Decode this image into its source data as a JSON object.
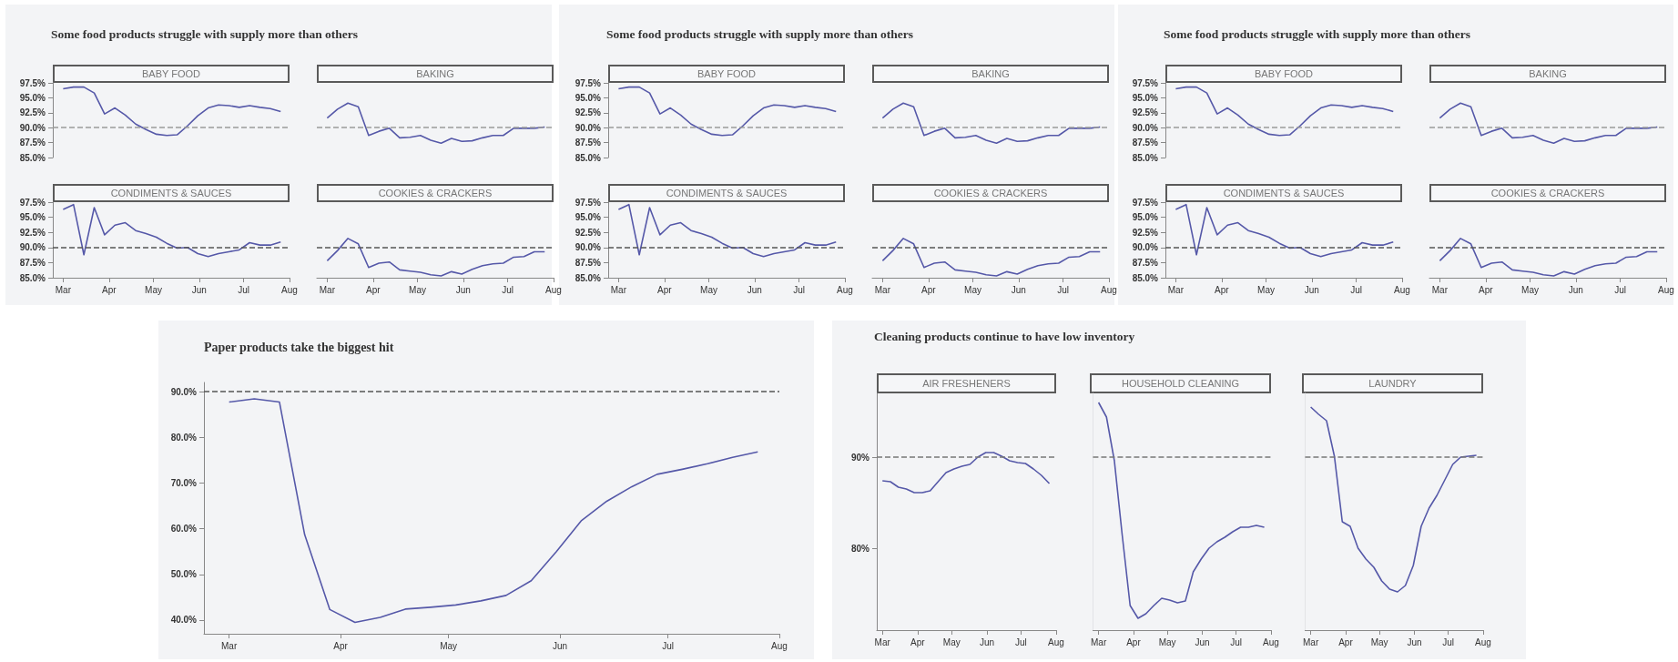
{
  "chart_data": [
    {
      "type": "other",
      "title": "Some food products struggle with supply more than others"
    },
    {
      "type": "line",
      "title": "BABY FOOD",
      "tick_labels": "y",
      "x": [
        "--03-01",
        "--03-08",
        "--03-15",
        "--03-22",
        "--03-29",
        "--04-05",
        "--04-12",
        "--04-19",
        "--04-26",
        "--05-03",
        "--05-10",
        "--05-17",
        "--05-24",
        "--05-31",
        "--06-07",
        "--06-14",
        "--06-21",
        "--06-28",
        "--07-05",
        "--07-12",
        "--07-19",
        "--07-26"
      ],
      "xlim": [
        "--02-23",
        "--08-01"
      ],
      "xticks": [
        {
          "value": "--03-01",
          "label": "Mar"
        },
        {
          "value": "--04-01",
          "label": "Apr"
        },
        {
          "value": "--05-01",
          "label": "May"
        },
        {
          "value": "--06-01",
          "label": "Jun"
        },
        {
          "value": "--07-01",
          "label": "Jul"
        },
        {
          "value": "--08-01",
          "label": "Aug"
        }
      ],
      "ylim": [
        85,
        97.5
      ],
      "yticks": [
        {
          "value": 85,
          "label": "85.0%"
        },
        {
          "value": 87.5,
          "label": "87.5%"
        },
        {
          "value": 90,
          "label": "90.0%"
        },
        {
          "value": 92.5,
          "label": "92.5%"
        },
        {
          "value": 95,
          "label": "95.0%"
        },
        {
          "value": 97.5,
          "label": "97.5%"
        }
      ],
      "ref_lines": [
        {
          "axis": "y",
          "value": 90,
          "color": "#9a9a9a",
          "line_style": "dashed"
        }
      ],
      "color": "#5558a8",
      "values": [
        96.5,
        96.8,
        96.8,
        95.8,
        92.3,
        93.3,
        92.1,
        90.6,
        89.7,
        88.9,
        88.7,
        88.8,
        90.3,
        92.0,
        93.3,
        93.8,
        93.7,
        93.4,
        93.7,
        93.4,
        93.2,
        92.7
      ]
    },
    {
      "type": "line",
      "title": "BAKING",
      "tick_labels": false,
      "x": [
        "--03-01",
        "--03-08",
        "--03-15",
        "--03-22",
        "--03-29",
        "--04-05",
        "--04-12",
        "--04-19",
        "--04-26",
        "--05-03",
        "--05-10",
        "--05-17",
        "--05-24",
        "--05-31",
        "--06-07",
        "--06-14",
        "--06-21",
        "--06-28",
        "--07-05",
        "--07-12",
        "--07-19",
        "--07-26"
      ],
      "xlim": [
        "--02-23",
        "--08-01"
      ],
      "xticks": [
        {
          "value": "--03-01",
          "label": "Mar"
        },
        {
          "value": "--04-01",
          "label": "Apr"
        },
        {
          "value": "--05-01",
          "label": "May"
        },
        {
          "value": "--06-01",
          "label": "Jun"
        },
        {
          "value": "--07-01",
          "label": "Jul"
        },
        {
          "value": "--08-01",
          "label": "Aug"
        }
      ],
      "ylim": [
        85,
        97.5
      ],
      "yticks": [
        {
          "value": 85,
          "label": "85.0%"
        },
        {
          "value": 87.5,
          "label": "87.5%"
        },
        {
          "value": 90,
          "label": "90.0%"
        },
        {
          "value": 92.5,
          "label": "92.5%"
        },
        {
          "value": 95,
          "label": "95.0%"
        },
        {
          "value": 97.5,
          "label": "97.5%"
        }
      ],
      "ref_lines": [
        {
          "axis": "y",
          "value": 90,
          "color": "#9a9a9a",
          "line_style": "dashed"
        }
      ],
      "color": "#5558a8",
      "values": [
        91.6,
        93.1,
        94.1,
        93.5,
        88.7,
        89.4,
        89.9,
        88.3,
        88.4,
        88.7,
        87.9,
        87.4,
        88.2,
        87.7,
        87.8,
        88.3,
        88.7,
        88.7,
        89.9,
        89.9,
        89.9,
        90.1
      ]
    },
    {
      "type": "line",
      "title": "CONDIMENTS & SAUCES",
      "x": [
        "--03-01",
        "--03-08",
        "--03-15",
        "--03-22",
        "--03-29",
        "--04-05",
        "--04-12",
        "--04-19",
        "--04-26",
        "--05-03",
        "--05-10",
        "--05-17",
        "--05-24",
        "--05-31",
        "--06-07",
        "--06-14",
        "--06-21",
        "--06-28",
        "--07-05",
        "--07-12",
        "--07-19",
        "--07-26"
      ],
      "xlim": [
        "--02-23",
        "--08-01"
      ],
      "xticks": [
        {
          "value": "--03-01",
          "label": "Mar"
        },
        {
          "value": "--04-01",
          "label": "Apr"
        },
        {
          "value": "--05-01",
          "label": "May"
        },
        {
          "value": "--06-01",
          "label": "Jun"
        },
        {
          "value": "--07-01",
          "label": "Jul"
        },
        {
          "value": "--08-01",
          "label": "Aug"
        }
      ],
      "ylim": [
        85,
        97.5
      ],
      "yticks": [
        {
          "value": 85,
          "label": "85.0%"
        },
        {
          "value": 87.5,
          "label": "87.5%"
        },
        {
          "value": 90,
          "label": "90.0%"
        },
        {
          "value": 92.5,
          "label": "92.5%"
        },
        {
          "value": 95,
          "label": "95.0%"
        },
        {
          "value": 97.5,
          "label": "97.5%"
        }
      ],
      "ref_lines": [
        {
          "axis": "y",
          "value": 90,
          "color": "#555555",
          "line_style": "dashed"
        }
      ],
      "color": "#5558a8",
      "values": [
        96.3,
        97.1,
        88.8,
        96.6,
        92.1,
        93.7,
        94.1,
        92.8,
        92.3,
        91.7,
        90.7,
        89.9,
        90.0,
        89.0,
        88.5,
        89.0,
        89.3,
        89.6,
        90.8,
        90.4,
        90.4,
        90.9
      ]
    },
    {
      "type": "line",
      "title": "COOKIES & CRACKERS",
      "tick_labels": "x",
      "x": [
        "--03-01",
        "--03-08",
        "--03-15",
        "--03-22",
        "--03-29",
        "--04-05",
        "--04-12",
        "--04-19",
        "--04-26",
        "--05-03",
        "--05-10",
        "--05-17",
        "--05-24",
        "--05-31",
        "--06-07",
        "--06-14",
        "--06-21",
        "--06-28",
        "--07-05",
        "--07-12",
        "--07-19",
        "--07-26"
      ],
      "xlim": [
        "--02-23",
        "--08-01"
      ],
      "xticks": [
        {
          "value": "--03-01",
          "label": "Mar"
        },
        {
          "value": "--04-01",
          "label": "Apr"
        },
        {
          "value": "--05-01",
          "label": "May"
        },
        {
          "value": "--06-01",
          "label": "Jun"
        },
        {
          "value": "--07-01",
          "label": "Jul"
        },
        {
          "value": "--08-01",
          "label": "Aug"
        }
      ],
      "ylim": [
        85,
        97.5
      ],
      "yticks": [
        {
          "value": 85,
          "label": "85.0%"
        },
        {
          "value": 87.5,
          "label": "87.5%"
        },
        {
          "value": 90,
          "label": "90.0%"
        },
        {
          "value": 92.5,
          "label": "92.5%"
        },
        {
          "value": 95,
          "label": "95.0%"
        },
        {
          "value": 97.5,
          "label": "97.5%"
        }
      ],
      "ref_lines": [
        {
          "axis": "y",
          "value": 90,
          "color": "#555555",
          "line_style": "dashed"
        }
      ],
      "color": "#5558a8",
      "values": [
        87.8,
        89.5,
        91.5,
        90.6,
        86.7,
        87.4,
        87.6,
        86.3,
        86.1,
        85.9,
        85.5,
        85.3,
        86.0,
        85.6,
        86.4,
        87.0,
        87.3,
        87.4,
        88.4,
        88.5,
        89.3,
        89.3
      ]
    },
    {
      "type": "other",
      "title": "Some food products struggle with supply more than others"
    },
    {
      "type": "line",
      "title": "BABY FOOD",
      "tick_labels": "y",
      "x": [
        "--03-01",
        "--03-08",
        "--03-15",
        "--03-22",
        "--03-29",
        "--04-05",
        "--04-12",
        "--04-19",
        "--04-26",
        "--05-03",
        "--05-10",
        "--05-17",
        "--05-24",
        "--05-31",
        "--06-07",
        "--06-14",
        "--06-21",
        "--06-28",
        "--07-05",
        "--07-12",
        "--07-19",
        "--07-26"
      ],
      "xlim": [
        "--02-23",
        "--08-01"
      ],
      "xticks": [
        {
          "value": "--03-01",
          "label": "Mar"
        },
        {
          "value": "--04-01",
          "label": "Apr"
        },
        {
          "value": "--05-01",
          "label": "May"
        },
        {
          "value": "--06-01",
          "label": "Jun"
        },
        {
          "value": "--07-01",
          "label": "Jul"
        },
        {
          "value": "--08-01",
          "label": "Aug"
        }
      ],
      "ylim": [
        85,
        97.5
      ],
      "yticks": [
        {
          "value": 85,
          "label": "85.0%"
        },
        {
          "value": 87.5,
          "label": "87.5%"
        },
        {
          "value": 90,
          "label": "90.0%"
        },
        {
          "value": 92.5,
          "label": "92.5%"
        },
        {
          "value": 95,
          "label": "95.0%"
        },
        {
          "value": 97.5,
          "label": "97.5%"
        }
      ],
      "ref_lines": [
        {
          "axis": "y",
          "value": 90,
          "color": "#9a9a9a",
          "line_style": "dashed"
        }
      ],
      "color": "#5558a8",
      "values": [
        96.5,
        96.8,
        96.8,
        95.8,
        92.3,
        93.3,
        92.1,
        90.6,
        89.7,
        88.9,
        88.7,
        88.8,
        90.3,
        92.0,
        93.3,
        93.8,
        93.7,
        93.4,
        93.7,
        93.4,
        93.2,
        92.7
      ]
    },
    {
      "type": "line",
      "title": "BAKING",
      "tick_labels": false,
      "x": [
        "--03-01",
        "--03-08",
        "--03-15",
        "--03-22",
        "--03-29",
        "--04-05",
        "--04-12",
        "--04-19",
        "--04-26",
        "--05-03",
        "--05-10",
        "--05-17",
        "--05-24",
        "--05-31",
        "--06-07",
        "--06-14",
        "--06-21",
        "--06-28",
        "--07-05",
        "--07-12",
        "--07-19",
        "--07-26"
      ],
      "xlim": [
        "--02-23",
        "--08-01"
      ],
      "xticks": [
        {
          "value": "--03-01",
          "label": "Mar"
        },
        {
          "value": "--04-01",
          "label": "Apr"
        },
        {
          "value": "--05-01",
          "label": "May"
        },
        {
          "value": "--06-01",
          "label": "Jun"
        },
        {
          "value": "--07-01",
          "label": "Jul"
        },
        {
          "value": "--08-01",
          "label": "Aug"
        }
      ],
      "ylim": [
        85,
        97.5
      ],
      "yticks": [
        {
          "value": 85,
          "label": "85.0%"
        },
        {
          "value": 87.5,
          "label": "87.5%"
        },
        {
          "value": 90,
          "label": "90.0%"
        },
        {
          "value": 92.5,
          "label": "92.5%"
        },
        {
          "value": 95,
          "label": "95.0%"
        },
        {
          "value": 97.5,
          "label": "97.5%"
        }
      ],
      "ref_lines": [
        {
          "axis": "y",
          "value": 90,
          "color": "#9a9a9a",
          "line_style": "dashed"
        }
      ],
      "color": "#5558a8",
      "values": [
        91.6,
        93.1,
        94.1,
        93.5,
        88.7,
        89.4,
        89.9,
        88.3,
        88.4,
        88.7,
        87.9,
        87.4,
        88.2,
        87.7,
        87.8,
        88.3,
        88.7,
        88.7,
        89.9,
        89.9,
        89.9,
        90.1
      ]
    },
    {
      "type": "line",
      "title": "CONDIMENTS & SAUCES",
      "x": [
        "--03-01",
        "--03-08",
        "--03-15",
        "--03-22",
        "--03-29",
        "--04-05",
        "--04-12",
        "--04-19",
        "--04-26",
        "--05-03",
        "--05-10",
        "--05-17",
        "--05-24",
        "--05-31",
        "--06-07",
        "--06-14",
        "--06-21",
        "--06-28",
        "--07-05",
        "--07-12",
        "--07-19",
        "--07-26"
      ],
      "xlim": [
        "--02-23",
        "--08-01"
      ],
      "xticks": [
        {
          "value": "--03-01",
          "label": "Mar"
        },
        {
          "value": "--04-01",
          "label": "Apr"
        },
        {
          "value": "--05-01",
          "label": "May"
        },
        {
          "value": "--06-01",
          "label": "Jun"
        },
        {
          "value": "--07-01",
          "label": "Jul"
        },
        {
          "value": "--08-01",
          "label": "Aug"
        }
      ],
      "ylim": [
        85,
        97.5
      ],
      "yticks": [
        {
          "value": 85,
          "label": "85.0%"
        },
        {
          "value": 87.5,
          "label": "87.5%"
        },
        {
          "value": 90,
          "label": "90.0%"
        },
        {
          "value": 92.5,
          "label": "92.5%"
        },
        {
          "value": 95,
          "label": "95.0%"
        },
        {
          "value": 97.5,
          "label": "97.5%"
        }
      ],
      "ref_lines": [
        {
          "axis": "y",
          "value": 90,
          "color": "#555555",
          "line_style": "dashed"
        }
      ],
      "color": "#5558a8",
      "values": [
        96.3,
        97.1,
        88.8,
        96.6,
        92.1,
        93.7,
        94.1,
        92.8,
        92.3,
        91.7,
        90.7,
        89.9,
        90.0,
        89.0,
        88.5,
        89.0,
        89.3,
        89.6,
        90.8,
        90.4,
        90.4,
        90.9
      ]
    },
    {
      "type": "line",
      "title": "COOKIES & CRACKERS",
      "tick_labels": "x",
      "x": [
        "--03-01",
        "--03-08",
        "--03-15",
        "--03-22",
        "--03-29",
        "--04-05",
        "--04-12",
        "--04-19",
        "--04-26",
        "--05-03",
        "--05-10",
        "--05-17",
        "--05-24",
        "--05-31",
        "--06-07",
        "--06-14",
        "--06-21",
        "--06-28",
        "--07-05",
        "--07-12",
        "--07-19",
        "--07-26"
      ],
      "xlim": [
        "--02-23",
        "--08-01"
      ],
      "xticks": [
        {
          "value": "--03-01",
          "label": "Mar"
        },
        {
          "value": "--04-01",
          "label": "Apr"
        },
        {
          "value": "--05-01",
          "label": "May"
        },
        {
          "value": "--06-01",
          "label": "Jun"
        },
        {
          "value": "--07-01",
          "label": "Jul"
        },
        {
          "value": "--08-01",
          "label": "Aug"
        }
      ],
      "ylim": [
        85,
        97.5
      ],
      "yticks": [
        {
          "value": 85,
          "label": "85.0%"
        },
        {
          "value": 87.5,
          "label": "87.5%"
        },
        {
          "value": 90,
          "label": "90.0%"
        },
        {
          "value": 92.5,
          "label": "92.5%"
        },
        {
          "value": 95,
          "label": "95.0%"
        },
        {
          "value": 97.5,
          "label": "97.5%"
        }
      ],
      "ref_lines": [
        {
          "axis": "y",
          "value": 90,
          "color": "#555555",
          "line_style": "dashed"
        }
      ],
      "color": "#5558a8",
      "values": [
        87.8,
        89.5,
        91.5,
        90.6,
        86.7,
        87.4,
        87.6,
        86.3,
        86.1,
        85.9,
        85.5,
        85.3,
        86.0,
        85.6,
        86.4,
        87.0,
        87.3,
        87.4,
        88.4,
        88.5,
        89.3,
        89.3
      ]
    },
    {
      "type": "other",
      "title": "Some food products struggle with supply more than others"
    },
    {
      "type": "line",
      "title": "BABY FOOD",
      "tick_labels": "y",
      "x": [
        "--03-01",
        "--03-08",
        "--03-15",
        "--03-22",
        "--03-29",
        "--04-05",
        "--04-12",
        "--04-19",
        "--04-26",
        "--05-03",
        "--05-10",
        "--05-17",
        "--05-24",
        "--05-31",
        "--06-07",
        "--06-14",
        "--06-21",
        "--06-28",
        "--07-05",
        "--07-12",
        "--07-19",
        "--07-26"
      ],
      "xlim": [
        "--02-23",
        "--08-01"
      ],
      "xticks": [
        {
          "value": "--03-01",
          "label": "Mar"
        },
        {
          "value": "--04-01",
          "label": "Apr"
        },
        {
          "value": "--05-01",
          "label": "May"
        },
        {
          "value": "--06-01",
          "label": "Jun"
        },
        {
          "value": "--07-01",
          "label": "Jul"
        },
        {
          "value": "--08-01",
          "label": "Aug"
        }
      ],
      "ylim": [
        85,
        97.5
      ],
      "yticks": [
        {
          "value": 85,
          "label": "85.0%"
        },
        {
          "value": 87.5,
          "label": "87.5%"
        },
        {
          "value": 90,
          "label": "90.0%"
        },
        {
          "value": 92.5,
          "label": "92.5%"
        },
        {
          "value": 95,
          "label": "95.0%"
        },
        {
          "value": 97.5,
          "label": "97.5%"
        }
      ],
      "ref_lines": [
        {
          "axis": "y",
          "value": 90,
          "color": "#9a9a9a",
          "line_style": "dashed"
        }
      ],
      "color": "#5558a8",
      "values": [
        96.5,
        96.8,
        96.8,
        95.8,
        92.3,
        93.3,
        92.1,
        90.6,
        89.7,
        88.9,
        88.7,
        88.8,
        90.3,
        92.0,
        93.3,
        93.8,
        93.7,
        93.4,
        93.7,
        93.4,
        93.2,
        92.7
      ]
    },
    {
      "type": "line",
      "title": "BAKING",
      "tick_labels": false,
      "x": [
        "--03-01",
        "--03-08",
        "--03-15",
        "--03-22",
        "--03-29",
        "--04-05",
        "--04-12",
        "--04-19",
        "--04-26",
        "--05-03",
        "--05-10",
        "--05-17",
        "--05-24",
        "--05-31",
        "--06-07",
        "--06-14",
        "--06-21",
        "--06-28",
        "--07-05",
        "--07-12",
        "--07-19",
        "--07-26"
      ],
      "xlim": [
        "--02-23",
        "--08-01"
      ],
      "xticks": [
        {
          "value": "--03-01",
          "label": "Mar"
        },
        {
          "value": "--04-01",
          "label": "Apr"
        },
        {
          "value": "--05-01",
          "label": "May"
        },
        {
          "value": "--06-01",
          "label": "Jun"
        },
        {
          "value": "--07-01",
          "label": "Jul"
        },
        {
          "value": "--08-01",
          "label": "Aug"
        }
      ],
      "ylim": [
        85,
        97.5
      ],
      "yticks": [
        {
          "value": 85,
          "label": "85.0%"
        },
        {
          "value": 87.5,
          "label": "87.5%"
        },
        {
          "value": 90,
          "label": "90.0%"
        },
        {
          "value": 92.5,
          "label": "92.5%"
        },
        {
          "value": 95,
          "label": "95.0%"
        },
        {
          "value": 97.5,
          "label": "97.5%"
        }
      ],
      "ref_lines": [
        {
          "axis": "y",
          "value": 90,
          "color": "#9a9a9a",
          "line_style": "dashed"
        }
      ],
      "color": "#5558a8",
      "values": [
        91.6,
        93.1,
        94.1,
        93.5,
        88.7,
        89.4,
        89.9,
        88.3,
        88.4,
        88.7,
        87.9,
        87.4,
        88.2,
        87.7,
        87.8,
        88.3,
        88.7,
        88.7,
        89.9,
        89.9,
        89.9,
        90.1
      ]
    },
    {
      "type": "line",
      "title": "CONDIMENTS & SAUCES",
      "x": [
        "--03-01",
        "--03-08",
        "--03-15",
        "--03-22",
        "--03-29",
        "--04-05",
        "--04-12",
        "--04-19",
        "--04-26",
        "--05-03",
        "--05-10",
        "--05-17",
        "--05-24",
        "--05-31",
        "--06-07",
        "--06-14",
        "--06-21",
        "--06-28",
        "--07-05",
        "--07-12",
        "--07-19",
        "--07-26"
      ],
      "xlim": [
        "--02-23",
        "--08-01"
      ],
      "xticks": [
        {
          "value": "--03-01",
          "label": "Mar"
        },
        {
          "value": "--04-01",
          "label": "Apr"
        },
        {
          "value": "--05-01",
          "label": "May"
        },
        {
          "value": "--06-01",
          "label": "Jun"
        },
        {
          "value": "--07-01",
          "label": "Jul"
        },
        {
          "value": "--08-01",
          "label": "Aug"
        }
      ],
      "ylim": [
        85,
        97.5
      ],
      "yticks": [
        {
          "value": 85,
          "label": "85.0%"
        },
        {
          "value": 87.5,
          "label": "87.5%"
        },
        {
          "value": 90,
          "label": "90.0%"
        },
        {
          "value": 92.5,
          "label": "92.5%"
        },
        {
          "value": 95,
          "label": "95.0%"
        },
        {
          "value": 97.5,
          "label": "97.5%"
        }
      ],
      "ref_lines": [
        {
          "axis": "y",
          "value": 90,
          "color": "#555555",
          "line_style": "dashed"
        }
      ],
      "color": "#5558a8",
      "values": [
        96.3,
        97.1,
        88.8,
        96.6,
        92.1,
        93.7,
        94.1,
        92.8,
        92.3,
        91.7,
        90.7,
        89.9,
        90.0,
        89.0,
        88.5,
        89.0,
        89.3,
        89.6,
        90.8,
        90.4,
        90.4,
        90.9
      ]
    },
    {
      "type": "line",
      "title": "COOKIES & CRACKERS",
      "tick_labels": "x",
      "x": [
        "--03-01",
        "--03-08",
        "--03-15",
        "--03-22",
        "--03-29",
        "--04-05",
        "--04-12",
        "--04-19",
        "--04-26",
        "--05-03",
        "--05-10",
        "--05-17",
        "--05-24",
        "--05-31",
        "--06-07",
        "--06-14",
        "--06-21",
        "--06-28",
        "--07-05",
        "--07-12",
        "--07-19",
        "--07-26"
      ],
      "xlim": [
        "--02-23",
        "--08-01"
      ],
      "xticks": [
        {
          "value": "--03-01",
          "label": "Mar"
        },
        {
          "value": "--04-01",
          "label": "Apr"
        },
        {
          "value": "--05-01",
          "label": "May"
        },
        {
          "value": "--06-01",
          "label": "Jun"
        },
        {
          "value": "--07-01",
          "label": "Jul"
        },
        {
          "value": "--08-01",
          "label": "Aug"
        }
      ],
      "ylim": [
        85,
        97.5
      ],
      "yticks": [
        {
          "value": 85,
          "label": "85.0%"
        },
        {
          "value": 87.5,
          "label": "87.5%"
        },
        {
          "value": 90,
          "label": "90.0%"
        },
        {
          "value": 92.5,
          "label": "92.5%"
        },
        {
          "value": 95,
          "label": "95.0%"
        },
        {
          "value": 97.5,
          "label": "97.5%"
        }
      ],
      "ref_lines": [
        {
          "axis": "y",
          "value": 90,
          "color": "#555555",
          "line_style": "dashed"
        }
      ],
      "color": "#5558a8",
      "values": [
        87.8,
        89.5,
        91.5,
        90.6,
        86.7,
        87.4,
        87.6,
        86.3,
        86.1,
        85.9,
        85.5,
        85.3,
        86.0,
        85.6,
        86.4,
        87.0,
        87.3,
        87.4,
        88.4,
        88.5,
        89.3,
        89.3
      ]
    },
    {
      "type": "line",
      "title": "Paper products take the biggest hit",
      "x": [
        "--03-01",
        "--03-08",
        "--03-15",
        "--03-22",
        "--03-29",
        "--04-05",
        "--04-12",
        "--04-19",
        "--04-26",
        "--05-03",
        "--05-10",
        "--05-17",
        "--05-24",
        "--05-31",
        "--06-07",
        "--06-14",
        "--06-21",
        "--06-28",
        "--07-05",
        "--07-12",
        "--07-19",
        "--07-26"
      ],
      "xlim": [
        "--02-23",
        "--08-01"
      ],
      "xticks": [
        {
          "value": "--03-01",
          "label": "Mar"
        },
        {
          "value": "--04-01",
          "label": "Apr"
        },
        {
          "value": "--05-01",
          "label": "May"
        },
        {
          "value": "--06-01",
          "label": "Jun"
        },
        {
          "value": "--07-01",
          "label": "Jul"
        },
        {
          "value": "--08-01",
          "label": "Aug"
        }
      ],
      "ylim": [
        37,
        92
      ],
      "yticks": [
        {
          "value": 40,
          "label": "40.0%"
        },
        {
          "value": 50,
          "label": "50.0%"
        },
        {
          "value": 60,
          "label": "60.0%"
        },
        {
          "value": 70,
          "label": "70.0%"
        },
        {
          "value": 80,
          "label": "80.0%"
        },
        {
          "value": 90,
          "label": "90.0%"
        }
      ],
      "ref_lines": [
        {
          "axis": "y",
          "value": 90,
          "color": "#555555",
          "line_style": "dashed"
        }
      ],
      "color": "#5558a8",
      "values": [
        87.7,
        88.4,
        87.7,
        58.7,
        42.3,
        39.5,
        40.6,
        42.4,
        42.8,
        43.3,
        44.2,
        45.4,
        48.6,
        55.0,
        61.8,
        66.0,
        69.2,
        71.9,
        73.0,
        74.2,
        75.6,
        76.8
      ]
    },
    {
      "type": "other",
      "title": "Cleaning products continue to have low inventory"
    },
    {
      "type": "line",
      "title": "AIR FRESHENERS",
      "x": [
        "--03-01",
        "--03-08",
        "--03-15",
        "--03-22",
        "--03-29",
        "--04-05",
        "--04-12",
        "--04-19",
        "--04-26",
        "--05-03",
        "--05-10",
        "--05-17",
        "--05-24",
        "--05-31",
        "--06-07",
        "--06-14",
        "--06-21",
        "--06-28",
        "--07-05",
        "--07-12",
        "--07-19",
        "--07-26"
      ],
      "xlim": [
        "--02-25",
        "--08-01"
      ],
      "xticks": [
        {
          "value": "--03-01",
          "label": "Mar"
        },
        {
          "value": "--04-01",
          "label": "Apr"
        },
        {
          "value": "--05-01",
          "label": "May"
        },
        {
          "value": "--06-01",
          "label": "Jun"
        },
        {
          "value": "--07-01",
          "label": "Jul"
        },
        {
          "value": "--08-01",
          "label": "Aug"
        }
      ],
      "ylim": [
        71,
        97
      ],
      "yticks": [
        {
          "value": 80,
          "label": "80%"
        },
        {
          "value": 90,
          "label": "90%"
        }
      ],
      "ref_lines": [
        {
          "axis": "y",
          "value": 90,
          "color": "#777777",
          "line_style": "dashed"
        }
      ],
      "color": "#5558a8",
      "values": [
        87.4,
        87.3,
        86.7,
        86.5,
        86.1,
        86.1,
        86.3,
        87.3,
        88.3,
        88.7,
        89.0,
        89.2,
        90.0,
        90.5,
        90.5,
        90.1,
        89.6,
        89.4,
        89.3,
        88.7,
        88.0,
        87.1
      ]
    },
    {
      "type": "line",
      "title": "HOUSEHOLD CLEANING",
      "tick_labels": "x",
      "x": [
        "--03-01",
        "--03-08",
        "--03-15",
        "--03-22",
        "--03-29",
        "--04-05",
        "--04-12",
        "--04-19",
        "--04-26",
        "--05-03",
        "--05-10",
        "--05-17",
        "--05-24",
        "--05-31",
        "--06-07",
        "--06-14",
        "--06-21",
        "--06-28",
        "--07-05",
        "--07-12",
        "--07-19",
        "--07-26"
      ],
      "xlim": [
        "--02-25",
        "--08-01"
      ],
      "xticks": [
        {
          "value": "--03-01",
          "label": "Mar"
        },
        {
          "value": "--04-01",
          "label": "Apr"
        },
        {
          "value": "--05-01",
          "label": "May"
        },
        {
          "value": "--06-01",
          "label": "Jun"
        },
        {
          "value": "--07-01",
          "label": "Jul"
        },
        {
          "value": "--08-01",
          "label": "Aug"
        }
      ],
      "ylim": [
        71,
        97
      ],
      "yticks": [
        {
          "value": 80,
          "label": "80%"
        },
        {
          "value": 90,
          "label": "90%"
        }
      ],
      "ref_lines": [
        {
          "axis": "y",
          "value": 90,
          "color": "#777777",
          "line_style": "dashed"
        }
      ],
      "color": "#5558a8",
      "values": [
        96.0,
        94.4,
        89.6,
        81.4,
        73.7,
        72.3,
        72.8,
        73.7,
        74.5,
        74.3,
        74.0,
        74.2,
        77.4,
        78.8,
        80.0,
        80.7,
        81.2,
        81.8,
        82.3,
        82.3,
        82.5,
        82.3
      ]
    },
    {
      "type": "line",
      "title": "LAUNDRY",
      "tick_labels": "x",
      "x": [
        "--03-01",
        "--03-08",
        "--03-15",
        "--03-22",
        "--03-29",
        "--04-05",
        "--04-12",
        "--04-19",
        "--04-26",
        "--05-03",
        "--05-10",
        "--05-17",
        "--05-24",
        "--05-31",
        "--06-07",
        "--06-14",
        "--06-21",
        "--06-28",
        "--07-05",
        "--07-12",
        "--07-19",
        "--07-26"
      ],
      "xlim": [
        "--02-25",
        "--08-01"
      ],
      "xticks": [
        {
          "value": "--03-01",
          "label": "Mar"
        },
        {
          "value": "--04-01",
          "label": "Apr"
        },
        {
          "value": "--05-01",
          "label": "May"
        },
        {
          "value": "--06-01",
          "label": "Jun"
        },
        {
          "value": "--07-01",
          "label": "Jul"
        },
        {
          "value": "--08-01",
          "label": "Aug"
        }
      ],
      "ylim": [
        71,
        97
      ],
      "yticks": [
        {
          "value": 80,
          "label": "80%"
        },
        {
          "value": 90,
          "label": "90%"
        }
      ],
      "ref_lines": [
        {
          "axis": "y",
          "value": 90,
          "color": "#777777",
          "line_style": "dashed"
        }
      ],
      "color": "#5558a8",
      "values": [
        95.5,
        94.7,
        94.0,
        90.1,
        82.9,
        82.4,
        80.0,
        78.8,
        77.9,
        76.4,
        75.5,
        75.2,
        75.9,
        78.1,
        82.4,
        84.4,
        85.8,
        87.5,
        89.2,
        90.0,
        90.1,
        90.2
      ]
    }
  ]
}
